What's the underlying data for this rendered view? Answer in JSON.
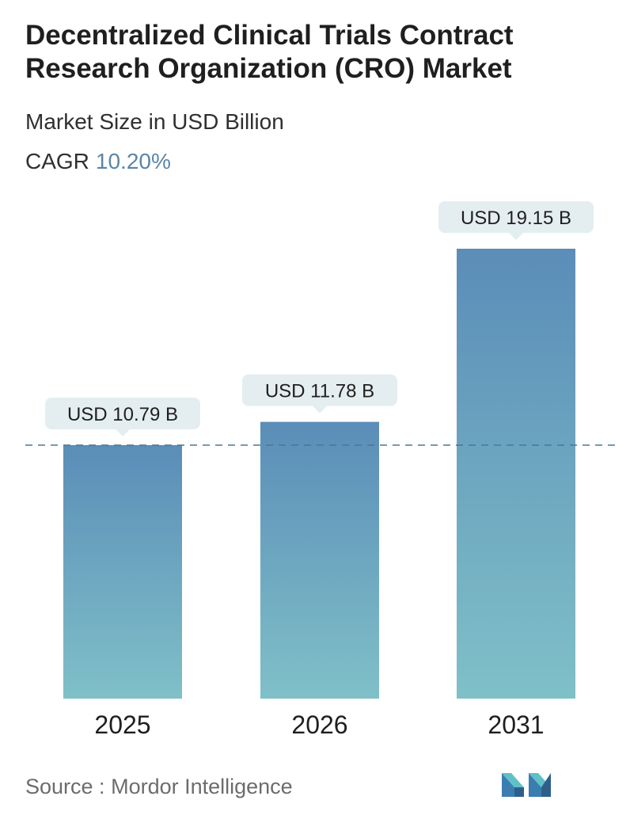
{
  "header": {
    "title": "Decentralized Clinical Trials Contract Research Organization (CRO) Market",
    "subtitle": "Market Size in USD Billion",
    "cagr_label": "CAGR",
    "cagr_value": "10.20%"
  },
  "footer": {
    "source_label": "Source :",
    "source_name": "Mordor Intelligence"
  },
  "colors": {
    "bar_top": "#5b8db8",
    "bar_bottom": "#7fc0c8",
    "callout_bg": "#e4eef0",
    "reference_line": "#4a7890"
  },
  "chart_data": {
    "type": "bar",
    "categories": [
      "2025",
      "2026",
      "2031"
    ],
    "values": [
      10.79,
      11.78,
      19.15
    ],
    "data_labels": [
      "USD 10.79 B",
      "USD 11.78 B",
      "USD 19.15 B"
    ],
    "unit": "USD Billion",
    "ylim": [
      0,
      19.15
    ],
    "grid": false,
    "legend": "none",
    "reference_line": {
      "value": 10.79,
      "style": "dashed"
    }
  }
}
